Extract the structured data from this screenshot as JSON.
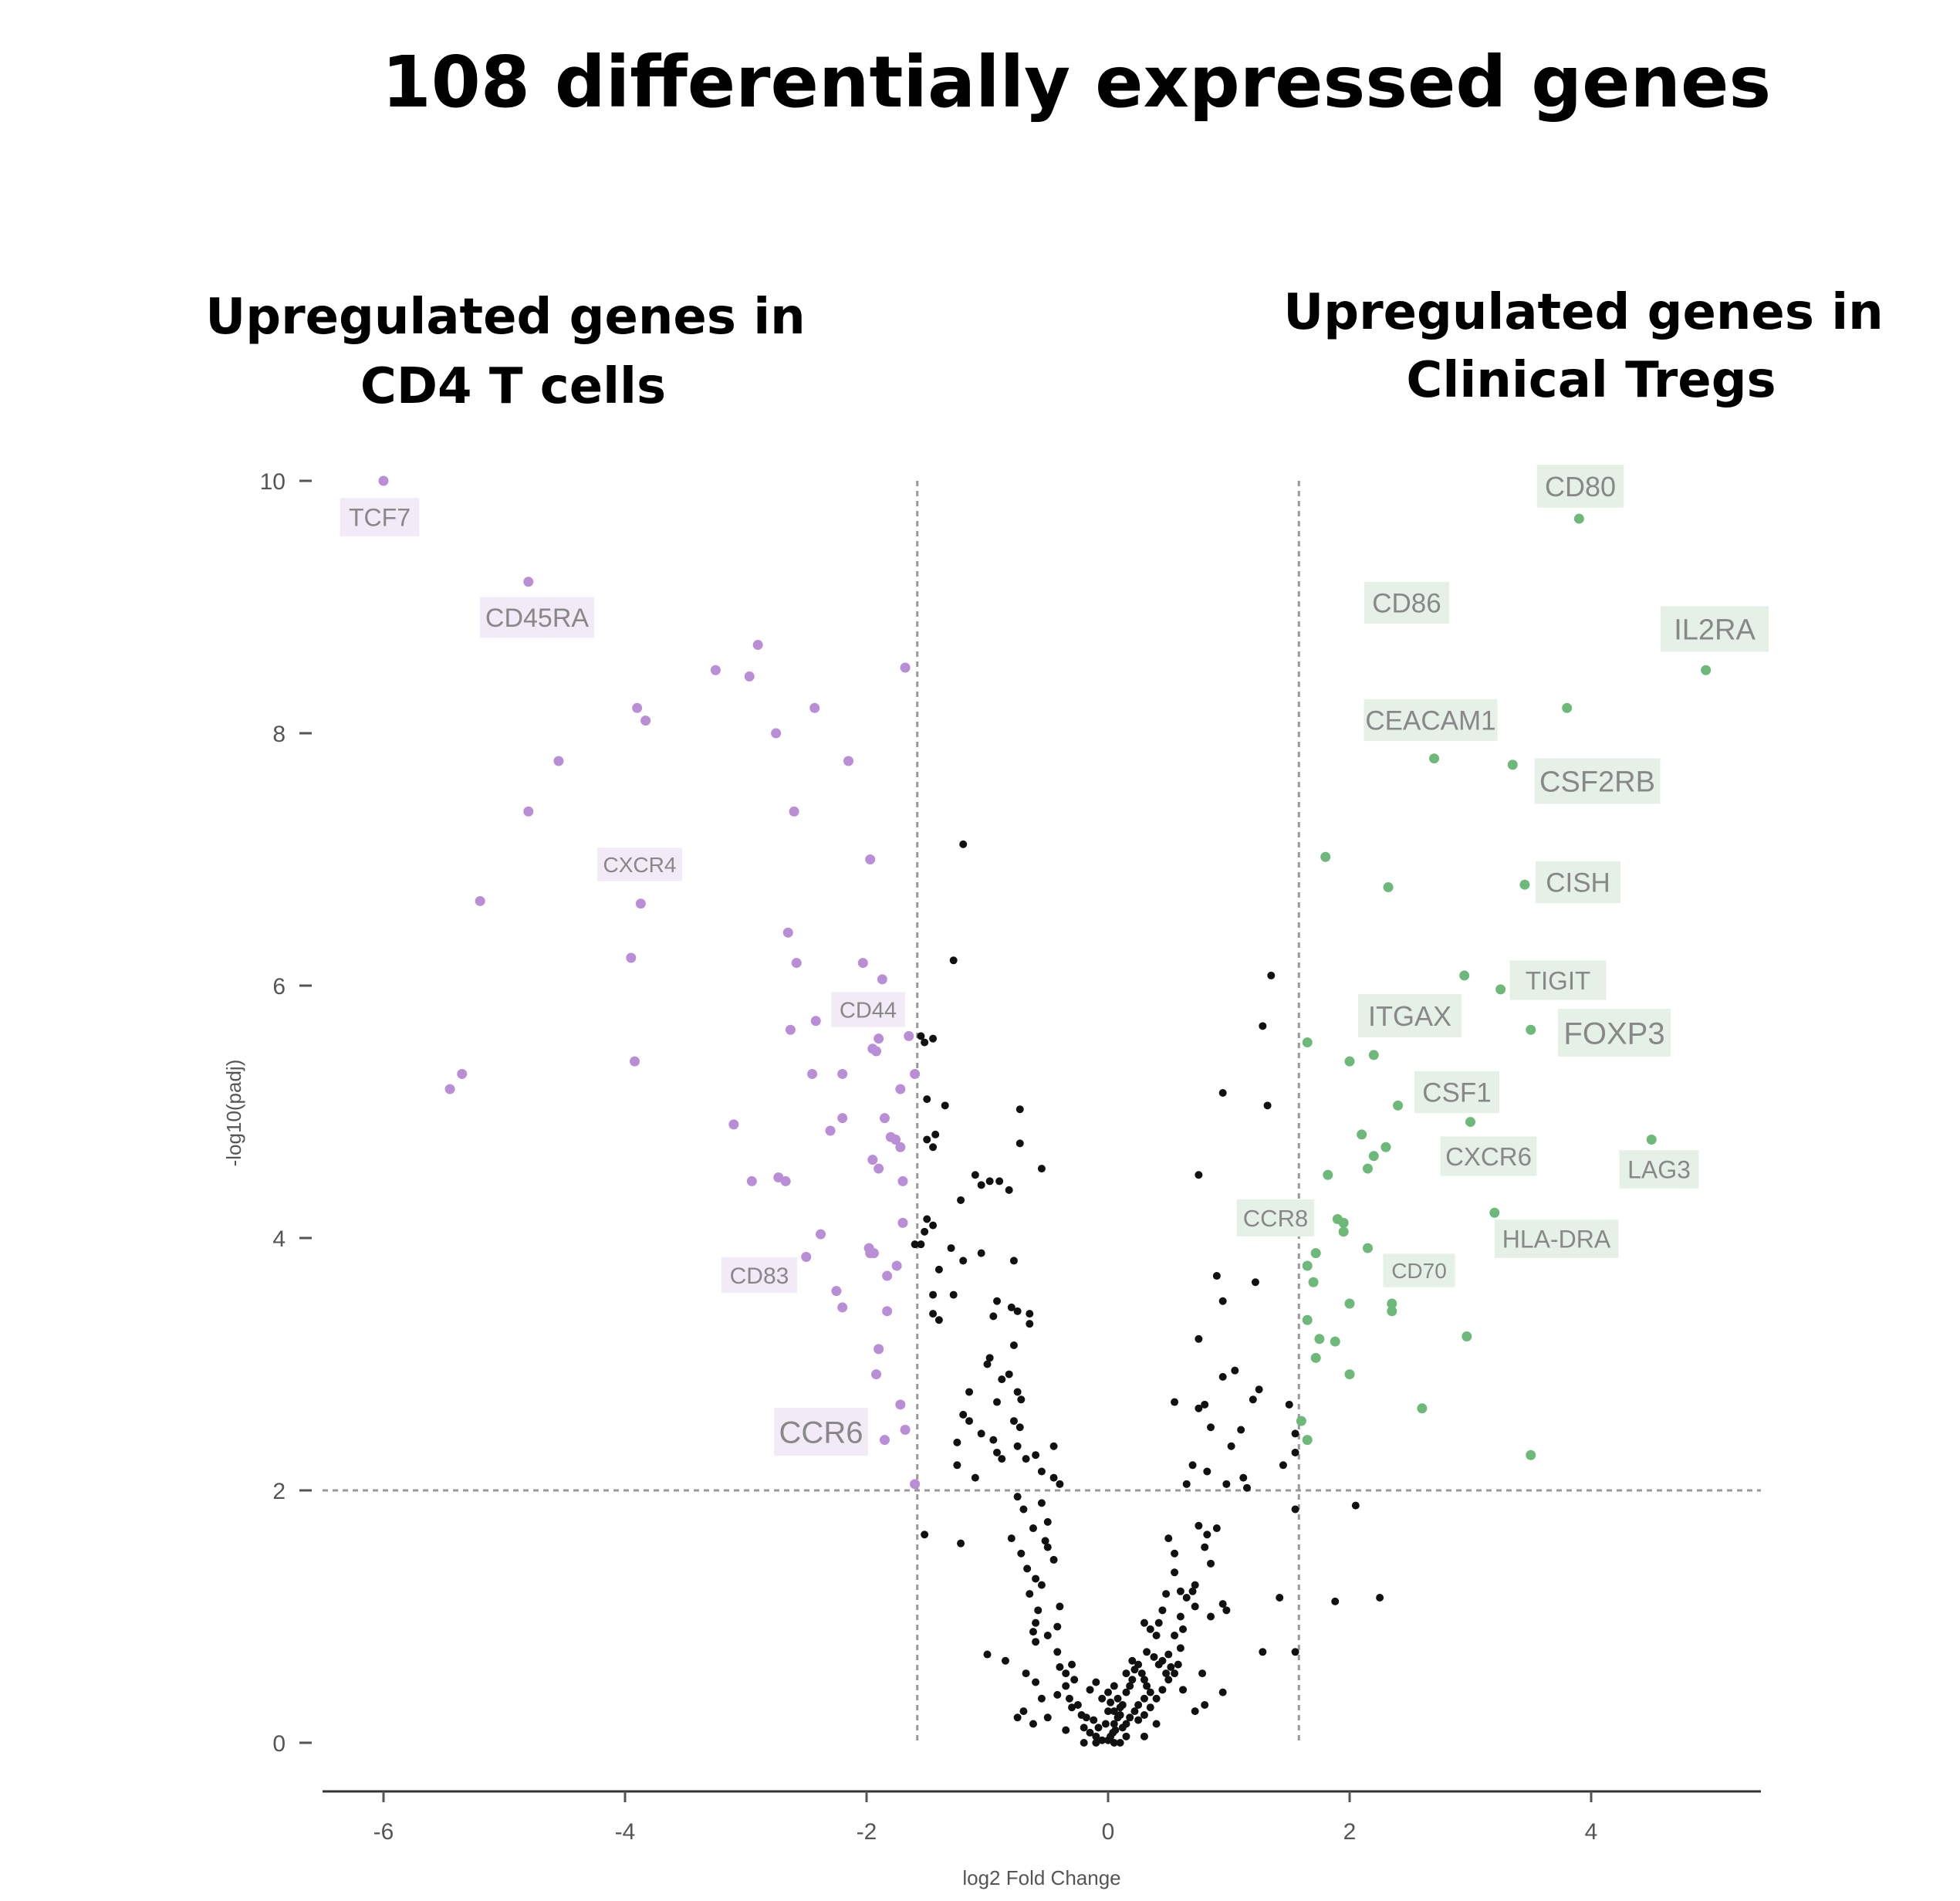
{
  "chart_data": {
    "type": "scatter",
    "title": "108 differentially expressed genes",
    "annotations": {
      "left_group": [
        "Upregulated genes in",
        "CD4 T cells"
      ],
      "right_group": [
        "Upregulated genes in",
        "Clinical Tregs"
      ]
    },
    "xlabel": "log2 Fold Change",
    "ylabel": "-log10(padj)",
    "xlim": [
      -6.5,
      5.4
    ],
    "ylim": [
      -0.8,
      10.2
    ],
    "xticks": [
      -6,
      -4,
      -2,
      0,
      2,
      4
    ],
    "yticks": [
      0,
      2,
      4,
      6,
      8,
      10
    ],
    "grid": false,
    "thresholds": {
      "fold_change": [
        -1.58,
        1.58
      ],
      "padj": 2
    },
    "colors": {
      "down": "#b98ed6",
      "up": "#6db97a",
      "neutral": "#111111",
      "down_label_bg": "#f2eaf7",
      "up_label_bg": "#e5f1e6"
    },
    "labels_down": [
      {
        "gene": "TCF7",
        "x": -6.0,
        "y": 10.0
      },
      {
        "gene": "CD45RA",
        "x": -4.8,
        "y": 9.2
      },
      {
        "gene": "CXCR4",
        "x": -3.9,
        "y": 6.65
      },
      {
        "gene": "CD44",
        "x": -1.9,
        "y": 5.6
      },
      {
        "gene": "CD83",
        "x": -2.5,
        "y": 3.85
      },
      {
        "gene": "CCR6",
        "x": -1.9,
        "y": 2.4
      }
    ],
    "labels_up": [
      {
        "gene": "CD80",
        "x": 3.9,
        "y": 9.7
      },
      {
        "gene": "CD86",
        "x": 3.8,
        "y": 8.2
      },
      {
        "gene": "IL2RA",
        "x": 4.95,
        "y": 8.5
      },
      {
        "gene": "CEACAM1",
        "x": 2.7,
        "y": 7.8
      },
      {
        "gene": "CSF2RB",
        "x": 3.35,
        "y": 7.75
      },
      {
        "gene": "CISH",
        "x": 3.45,
        "y": 6.8
      },
      {
        "gene": "TIGIT",
        "x": 3.25,
        "y": 5.95
      },
      {
        "gene": "ITGAX",
        "x": 2.2,
        "y": 5.45
      },
      {
        "gene": "FOXP3",
        "x": 3.5,
        "y": 5.65
      },
      {
        "gene": "CSF1",
        "x": 3.0,
        "y": 4.9
      },
      {
        "gene": "CXCR6",
        "x": 2.4,
        "y": 5.05
      },
      {
        "gene": "LAG3",
        "x": 4.5,
        "y": 4.75
      },
      {
        "gene": "CCR8",
        "x": 1.95,
        "y": 4.1
      },
      {
        "gene": "HLA-DRA",
        "x": 3.2,
        "y": 4.2
      },
      {
        "gene": "CD70",
        "x": 2.35,
        "y": 3.45
      }
    ],
    "points_down": [
      [
        -6.0,
        10.0
      ],
      [
        -4.8,
        9.2
      ],
      [
        -2.9,
        8.7
      ],
      [
        -3.25,
        8.5
      ],
      [
        -2.97,
        8.45
      ],
      [
        -1.68,
        8.52
      ],
      [
        -3.9,
        8.2
      ],
      [
        -2.43,
        8.2
      ],
      [
        -3.83,
        8.1
      ],
      [
        -2.75,
        8.0
      ],
      [
        -4.55,
        7.78
      ],
      [
        -2.15,
        7.78
      ],
      [
        -4.8,
        7.38
      ],
      [
        -2.6,
        7.38
      ],
      [
        -1.97,
        7.0
      ],
      [
        -5.2,
        6.67
      ],
      [
        -3.87,
        6.65
      ],
      [
        -2.65,
        6.42
      ],
      [
        -3.95,
        6.22
      ],
      [
        -2.58,
        6.18
      ],
      [
        -2.03,
        6.18
      ],
      [
        -1.87,
        6.05
      ],
      [
        -1.65,
        5.6
      ],
      [
        -2.42,
        5.72
      ],
      [
        -2.63,
        5.65
      ],
      [
        -1.9,
        5.58
      ],
      [
        -1.92,
        5.48
      ],
      [
        -1.95,
        5.5
      ],
      [
        -5.35,
        5.3
      ],
      [
        -5.45,
        5.18
      ],
      [
        -3.92,
        5.4
      ],
      [
        -2.45,
        5.3
      ],
      [
        -2.2,
        5.3
      ],
      [
        -1.72,
        5.18
      ],
      [
        -1.6,
        5.3
      ],
      [
        -3.1,
        4.9
      ],
      [
        -2.2,
        4.95
      ],
      [
        -1.85,
        4.95
      ],
      [
        -2.3,
        4.85
      ],
      [
        -1.8,
        4.8
      ],
      [
        -1.76,
        4.78
      ],
      [
        -1.72,
        4.72
      ],
      [
        -1.95,
        4.62
      ],
      [
        -1.9,
        4.55
      ],
      [
        -2.95,
        4.45
      ],
      [
        -2.73,
        4.48
      ],
      [
        -2.67,
        4.45
      ],
      [
        -1.7,
        4.45
      ],
      [
        -1.7,
        4.12
      ],
      [
        -2.38,
        4.03
      ],
      [
        -1.98,
        3.92
      ],
      [
        -1.97,
        3.88
      ],
      [
        -1.94,
        3.88
      ],
      [
        -2.5,
        3.85
      ],
      [
        -1.75,
        3.78
      ],
      [
        -1.83,
        3.7
      ],
      [
        -2.25,
        3.58
      ],
      [
        -2.2,
        3.45
      ],
      [
        -1.83,
        3.42
      ],
      [
        -1.9,
        3.12
      ],
      [
        -1.92,
        2.92
      ],
      [
        -1.72,
        2.68
      ],
      [
        -1.68,
        2.48
      ],
      [
        -1.85,
        2.4
      ],
      [
        -1.6,
        2.05
      ]
    ],
    "points_up": [
      [
        3.9,
        9.7
      ],
      [
        4.95,
        8.5
      ],
      [
        3.8,
        8.2
      ],
      [
        2.7,
        7.8
      ],
      [
        3.35,
        7.75
      ],
      [
        1.8,
        7.02
      ],
      [
        2.32,
        6.78
      ],
      [
        3.45,
        6.8
      ],
      [
        2.95,
        6.08
      ],
      [
        3.25,
        5.97
      ],
      [
        1.65,
        5.55
      ],
      [
        3.5,
        5.65
      ],
      [
        2.2,
        5.45
      ],
      [
        2.0,
        5.4
      ],
      [
        2.4,
        5.05
      ],
      [
        3.0,
        4.92
      ],
      [
        2.1,
        4.82
      ],
      [
        2.3,
        4.72
      ],
      [
        2.2,
        4.65
      ],
      [
        4.5,
        4.78
      ],
      [
        2.15,
        4.55
      ],
      [
        1.82,
        4.5
      ],
      [
        1.9,
        4.15
      ],
      [
        1.95,
        4.12
      ],
      [
        1.95,
        4.05
      ],
      [
        3.2,
        4.2
      ],
      [
        2.15,
        3.92
      ],
      [
        1.72,
        3.88
      ],
      [
        1.65,
        3.78
      ],
      [
        1.7,
        3.65
      ],
      [
        2.0,
        3.48
      ],
      [
        2.35,
        3.48
      ],
      [
        2.35,
        3.42
      ],
      [
        1.65,
        3.35
      ],
      [
        1.75,
        3.2
      ],
      [
        1.88,
        3.18
      ],
      [
        2.97,
        3.22
      ],
      [
        1.72,
        3.05
      ],
      [
        2.0,
        2.92
      ],
      [
        2.6,
        2.65
      ],
      [
        1.6,
        2.55
      ],
      [
        1.65,
        2.4
      ],
      [
        3.5,
        2.28
      ]
    ],
    "points_neutral": [
      [
        -1.2,
        7.12
      ],
      [
        -1.28,
        6.2
      ],
      [
        1.35,
        6.08
      ],
      [
        1.28,
        5.68
      ],
      [
        -1.55,
        5.6
      ],
      [
        -1.52,
        5.55
      ],
      [
        -1.45,
        5.58
      ],
      [
        0.95,
        5.15
      ],
      [
        -1.5,
        5.1
      ],
      [
        -1.35,
        5.05
      ],
      [
        -0.73,
        5.02
      ],
      [
        1.32,
        5.05
      ],
      [
        -1.5,
        4.78
      ],
      [
        -1.43,
        4.82
      ],
      [
        -1.45,
        4.72
      ],
      [
        -0.73,
        4.75
      ],
      [
        -0.55,
        4.55
      ],
      [
        -1.1,
        4.5
      ],
      [
        -1.05,
        4.42
      ],
      [
        -0.98,
        4.45
      ],
      [
        -0.9,
        4.45
      ],
      [
        -0.82,
        4.38
      ],
      [
        0.75,
        4.5
      ],
      [
        -1.22,
        4.3
      ],
      [
        -1.5,
        4.15
      ],
      [
        -1.52,
        4.05
      ],
      [
        -1.45,
        4.1
      ],
      [
        -1.6,
        3.95
      ],
      [
        -1.55,
        3.95
      ],
      [
        -1.3,
        3.92
      ],
      [
        -1.2,
        3.82
      ],
      [
        -1.05,
        3.88
      ],
      [
        -0.78,
        3.82
      ],
      [
        -1.4,
        3.75
      ],
      [
        -1.45,
        3.55
      ],
      [
        -1.28,
        3.55
      ],
      [
        -0.92,
        3.5
      ],
      [
        -0.8,
        3.45
      ],
      [
        -0.75,
        3.42
      ],
      [
        -0.65,
        3.4
      ],
      [
        -1.45,
        3.4
      ],
      [
        -1.4,
        3.35
      ],
      [
        -0.65,
        3.32
      ],
      [
        -0.95,
        3.38
      ],
      [
        0.9,
        3.7
      ],
      [
        0.95,
        3.5
      ],
      [
        1.22,
        3.65
      ],
      [
        0.75,
        3.2
      ],
      [
        -0.78,
        3.15
      ],
      [
        -0.98,
        3.05
      ],
      [
        -1.0,
        3.0
      ],
      [
        -0.88,
        2.88
      ],
      [
        -0.82,
        2.92
      ],
      [
        -1.15,
        2.78
      ],
      [
        -0.92,
        2.7
      ],
      [
        -0.75,
        2.78
      ],
      [
        -0.72,
        2.72
      ],
      [
        -0.78,
        2.55
      ],
      [
        -0.73,
        2.5
      ],
      [
        1.05,
        2.95
      ],
      [
        0.95,
        2.9
      ],
      [
        1.25,
        2.8
      ],
      [
        1.2,
        2.72
      ],
      [
        0.75,
        2.65
      ],
      [
        0.55,
        2.7
      ],
      [
        0.8,
        2.68
      ],
      [
        1.5,
        2.68
      ],
      [
        -1.2,
        2.6
      ],
      [
        -1.15,
        2.55
      ],
      [
        -1.25,
        2.38
      ],
      [
        -1.05,
        2.45
      ],
      [
        -0.95,
        2.4
      ],
      [
        -0.92,
        2.3
      ],
      [
        -0.68,
        2.25
      ],
      [
        -0.6,
        2.28
      ],
      [
        -0.55,
        2.15
      ],
      [
        -1.25,
        2.2
      ],
      [
        -0.88,
        2.25
      ],
      [
        -0.75,
        2.35
      ],
      [
        -0.45,
        2.35
      ],
      [
        -0.45,
        2.1
      ],
      [
        -0.4,
        2.05
      ],
      [
        -1.1,
        2.1
      ],
      [
        0.85,
        2.5
      ],
      [
        1.1,
        2.48
      ],
      [
        1.02,
        2.35
      ],
      [
        0.7,
        2.2
      ],
      [
        0.82,
        2.15
      ],
      [
        1.12,
        2.1
      ],
      [
        1.45,
        2.2
      ],
      [
        1.55,
        2.45
      ],
      [
        1.55,
        2.3
      ],
      [
        0.98,
        2.05
      ],
      [
        0.65,
        2.05
      ],
      [
        1.15,
        2.02
      ],
      [
        1.55,
        1.85
      ],
      [
        2.05,
        1.88
      ],
      [
        -0.75,
        1.95
      ],
      [
        -0.7,
        1.85
      ],
      [
        -0.55,
        1.9
      ],
      [
        -0.5,
        1.75
      ],
      [
        -0.62,
        1.7
      ],
      [
        -0.52,
        1.6
      ],
      [
        -0.5,
        1.55
      ],
      [
        -0.45,
        1.45
      ],
      [
        -0.8,
        1.62
      ],
      [
        -0.72,
        1.5
      ],
      [
        -0.67,
        1.38
      ],
      [
        -0.6,
        1.3
      ],
      [
        -0.55,
        1.25
      ],
      [
        -0.65,
        1.18
      ],
      [
        -0.58,
        1.05
      ],
      [
        -0.6,
        0.95
      ],
      [
        -0.62,
        0.88
      ],
      [
        -0.6,
        0.8
      ],
      [
        -0.4,
        1.08
      ],
      [
        -0.42,
        0.92
      ],
      [
        -0.5,
        0.85
      ],
      [
        -1.22,
        1.58
      ],
      [
        -1.52,
        1.65
      ],
      [
        0.75,
        1.72
      ],
      [
        0.82,
        1.65
      ],
      [
        0.9,
        1.7
      ],
      [
        0.8,
        1.55
      ],
      [
        0.85,
        1.42
      ],
      [
        0.72,
        1.25
      ],
      [
        0.65,
        1.15
      ],
      [
        0.72,
        1.08
      ],
      [
        0.85,
        1.0
      ],
      [
        0.55,
        1.5
      ],
      [
        0.5,
        1.62
      ],
      [
        0.55,
        1.35
      ],
      [
        0.6,
        1.2
      ],
      [
        0.48,
        1.18
      ],
      [
        0.45,
        1.05
      ],
      [
        0.42,
        0.95
      ],
      [
        0.6,
        1.0
      ],
      [
        0.62,
        0.9
      ],
      [
        0.55,
        0.85
      ],
      [
        0.4,
        0.85
      ],
      [
        0.35,
        0.9
      ],
      [
        0.3,
        0.95
      ],
      [
        0.7,
        1.2
      ],
      [
        0.95,
        1.1
      ],
      [
        0.98,
        1.05
      ],
      [
        1.42,
        1.15
      ],
      [
        2.25,
        1.15
      ],
      [
        1.88,
        1.12
      ],
      [
        -1.0,
        0.7
      ],
      [
        -0.85,
        0.65
      ],
      [
        -0.42,
        0.72
      ],
      [
        -0.4,
        0.6
      ],
      [
        -0.35,
        0.55
      ],
      [
        -0.3,
        0.62
      ],
      [
        -0.28,
        0.5
      ],
      [
        -0.35,
        0.45
      ],
      [
        -0.42,
        0.38
      ],
      [
        -0.32,
        0.35
      ],
      [
        -0.3,
        0.28
      ],
      [
        -0.25,
        0.3
      ],
      [
        -0.22,
        0.22
      ],
      [
        -0.18,
        0.2
      ],
      [
        -0.2,
        0.12
      ],
      [
        -0.15,
        0.08
      ],
      [
        -0.1,
        0.05
      ],
      [
        -0.05,
        0.02
      ],
      [
        0.0,
        0.02
      ],
      [
        0.02,
        0.05
      ],
      [
        0.04,
        0.08
      ],
      [
        0.06,
        0.1
      ],
      [
        0.05,
        0.15
      ],
      [
        0.08,
        0.2
      ],
      [
        0.1,
        0.22
      ],
      [
        0.05,
        0.25
      ],
      [
        0.1,
        0.28
      ],
      [
        0.12,
        0.3
      ],
      [
        0.08,
        0.35
      ],
      [
        0.15,
        0.4
      ],
      [
        0.18,
        0.45
      ],
      [
        0.2,
        0.5
      ],
      [
        0.15,
        0.55
      ],
      [
        0.22,
        0.58
      ],
      [
        0.25,
        0.62
      ],
      [
        0.2,
        0.65
      ],
      [
        0.28,
        0.55
      ],
      [
        0.3,
        0.5
      ],
      [
        0.32,
        0.45
      ],
      [
        0.35,
        0.4
      ],
      [
        0.3,
        0.35
      ],
      [
        0.25,
        0.3
      ],
      [
        0.22,
        0.25
      ],
      [
        0.18,
        0.2
      ],
      [
        0.15,
        0.15
      ],
      [
        0.12,
        0.12
      ],
      [
        0.25,
        0.18
      ],
      [
        0.3,
        0.22
      ],
      [
        0.35,
        0.28
      ],
      [
        0.4,
        0.35
      ],
      [
        0.45,
        0.42
      ],
      [
        0.5,
        0.5
      ],
      [
        0.48,
        0.55
      ],
      [
        0.42,
        0.62
      ],
      [
        0.38,
        0.68
      ],
      [
        0.32,
        0.72
      ],
      [
        0.45,
        0.65
      ],
      [
        0.5,
        0.7
      ],
      [
        0.52,
        0.6
      ],
      [
        0.55,
        0.55
      ],
      [
        0.58,
        0.62
      ],
      [
        -0.12,
        0.18
      ],
      [
        -0.08,
        0.12
      ],
      [
        0.0,
        0.25
      ],
      [
        0.02,
        0.32
      ],
      [
        -0.05,
        0.35
      ],
      [
        0.0,
        0.4
      ],
      [
        0.05,
        0.45
      ],
      [
        -0.15,
        0.42
      ],
      [
        -0.1,
        0.48
      ],
      [
        -0.6,
        0.48
      ],
      [
        -0.68,
        0.55
      ],
      [
        -0.55,
        0.35
      ],
      [
        -0.5,
        0.2
      ],
      [
        -0.75,
        0.2
      ],
      [
        -0.62,
        0.15
      ],
      [
        0.62,
        0.42
      ],
      [
        0.8,
        0.3
      ],
      [
        0.78,
        0.55
      ],
      [
        0.95,
        0.4
      ],
      [
        0.6,
        0.75
      ],
      [
        1.28,
        0.72
      ],
      [
        1.55,
        0.72
      ],
      [
        0.72,
        0.25
      ],
      [
        0.3,
        0.05
      ],
      [
        0.4,
        0.15
      ],
      [
        -0.7,
        0.25
      ],
      [
        -0.35,
        0.1
      ],
      [
        0.15,
        0.05
      ],
      [
        -0.02,
        0.15
      ],
      [
        0.1,
        0.0
      ],
      [
        -0.2,
        0.0
      ],
      [
        0.05,
        0.0
      ],
      [
        -0.1,
        0.0
      ]
    ]
  }
}
